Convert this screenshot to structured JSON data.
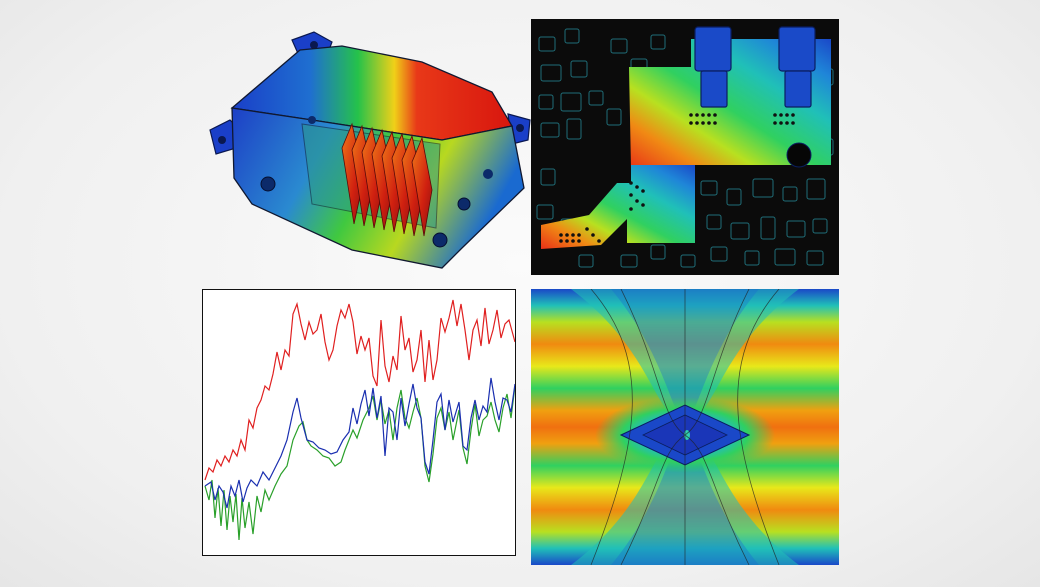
{
  "colors": {
    "hot": "#e21d12",
    "warm": "#f08a10",
    "mid": "#e8e81a",
    "cool": "#27c43a",
    "cyan": "#19b7c8",
    "cold": "#1736c8",
    "board_background": "#0b0b0b",
    "trace_red": "#e02020",
    "trace_blue": "#1a2fb0",
    "trace_green": "#2aa02a"
  },
  "panels": [
    {
      "name": "thermal-housing",
      "icon": "3d-thermal-model"
    },
    {
      "name": "pcb-thermal-map",
      "icon": "circuit-board-heatmap"
    },
    {
      "name": "spectrum-plot",
      "icon": "line-plot"
    },
    {
      "name": "eye-diagram",
      "icon": "eye-pattern-heatmap"
    }
  ]
}
